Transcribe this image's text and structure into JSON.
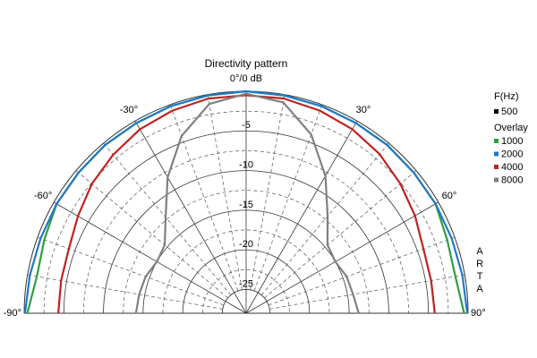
{
  "chart_data": {
    "type": "polar",
    "title": "Directivity pattern",
    "x": [
      -90,
      -80,
      -70,
      -60,
      -50,
      -40,
      -30,
      -20,
      -10,
      0,
      10,
      20,
      30,
      40,
      50,
      60,
      70,
      80,
      90
    ],
    "xlim": [
      -90,
      90
    ],
    "xticks": [
      {
        "value": -90,
        "label": "-90°"
      },
      {
        "value": -60,
        "label": "-60°"
      },
      {
        "value": -30,
        "label": "-30°"
      },
      {
        "value": 0,
        "label": "0°/0 dB"
      },
      {
        "value": 30,
        "label": "30°"
      },
      {
        "value": 60,
        "label": "60°"
      },
      {
        "value": 90,
        "label": "90°"
      }
    ],
    "minor_xticks": [
      -80,
      -70,
      -50,
      -40,
      -20,
      -10,
      10,
      20,
      40,
      50,
      70,
      80
    ],
    "ylim": [
      -28,
      0
    ],
    "yticks": [
      -5,
      -10,
      -15,
      -20,
      -25
    ],
    "minor_yticks": [
      -2.5,
      -7.5,
      -12.5,
      -17.5,
      -22.5
    ],
    "grid": true,
    "legend_title": "F(Hz)",
    "reference": {
      "name": "500",
      "color": "#000000"
    },
    "overlay_title": "Overlay",
    "side_label": "ARTA",
    "series": [
      {
        "name": "1000",
        "color": "#2e9e3e",
        "values": [
          -0.4,
          -1.2,
          -0.9,
          -0.4,
          -0.4,
          -0.3,
          -0.3,
          -0.2,
          -0.1,
          0,
          -0.1,
          -0.2,
          -0.3,
          -0.3,
          -0.4,
          -0.4,
          -1.0,
          -1.2,
          -0.5
        ]
      },
      {
        "name": "2000",
        "color": "#1f78c8",
        "values": [
          -0.1,
          -0.3,
          -0.4,
          -0.4,
          -0.4,
          -0.3,
          -0.3,
          -0.2,
          -0.1,
          0,
          -0.1,
          -0.2,
          -0.3,
          -0.3,
          -0.4,
          -0.4,
          -0.4,
          -0.3,
          -0.1
        ]
      },
      {
        "name": "4000",
        "color": "#c0221f",
        "values": [
          -4.3,
          -4.3,
          -4.2,
          -3.5,
          -2.6,
          -1.9,
          -1.2,
          -0.8,
          -0.5,
          -0.5,
          -0.5,
          -0.8,
          -1.2,
          -1.8,
          -2.6,
          -3.4,
          -4.2,
          -4.3,
          -4.2
        ]
      },
      {
        "name": "8000",
        "color": "#808080",
        "values": [
          -14.1,
          -14.3,
          -14.5,
          -15.0,
          -14.6,
          -12.2,
          -8.2,
          -4.2,
          -1.2,
          -0.3,
          -1.0,
          -4.0,
          -8.0,
          -12.0,
          -14.6,
          -15.0,
          -14.5,
          -14.3,
          -13.8
        ]
      }
    ]
  }
}
